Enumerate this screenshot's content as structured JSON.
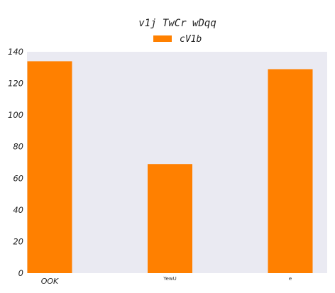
{
  "chart_data": {
    "type": "bar",
    "title": "v1j TwCr wDqq",
    "categories": [
      "OOK",
      "YewU",
      "e"
    ],
    "series": [
      {
        "name": "cV1b",
        "values": [
          134,
          69,
          129
        ]
      }
    ],
    "xlabel": "",
    "ylabel": "",
    "ylim": [
      0,
      140
    ],
    "yticks": [
      0,
      20,
      40,
      60,
      80,
      100,
      120,
      140
    ],
    "grid": false,
    "legend": "top-center",
    "colors": {
      "bar": "#ff8000",
      "plot_background": "#eaeaf2"
    }
  }
}
